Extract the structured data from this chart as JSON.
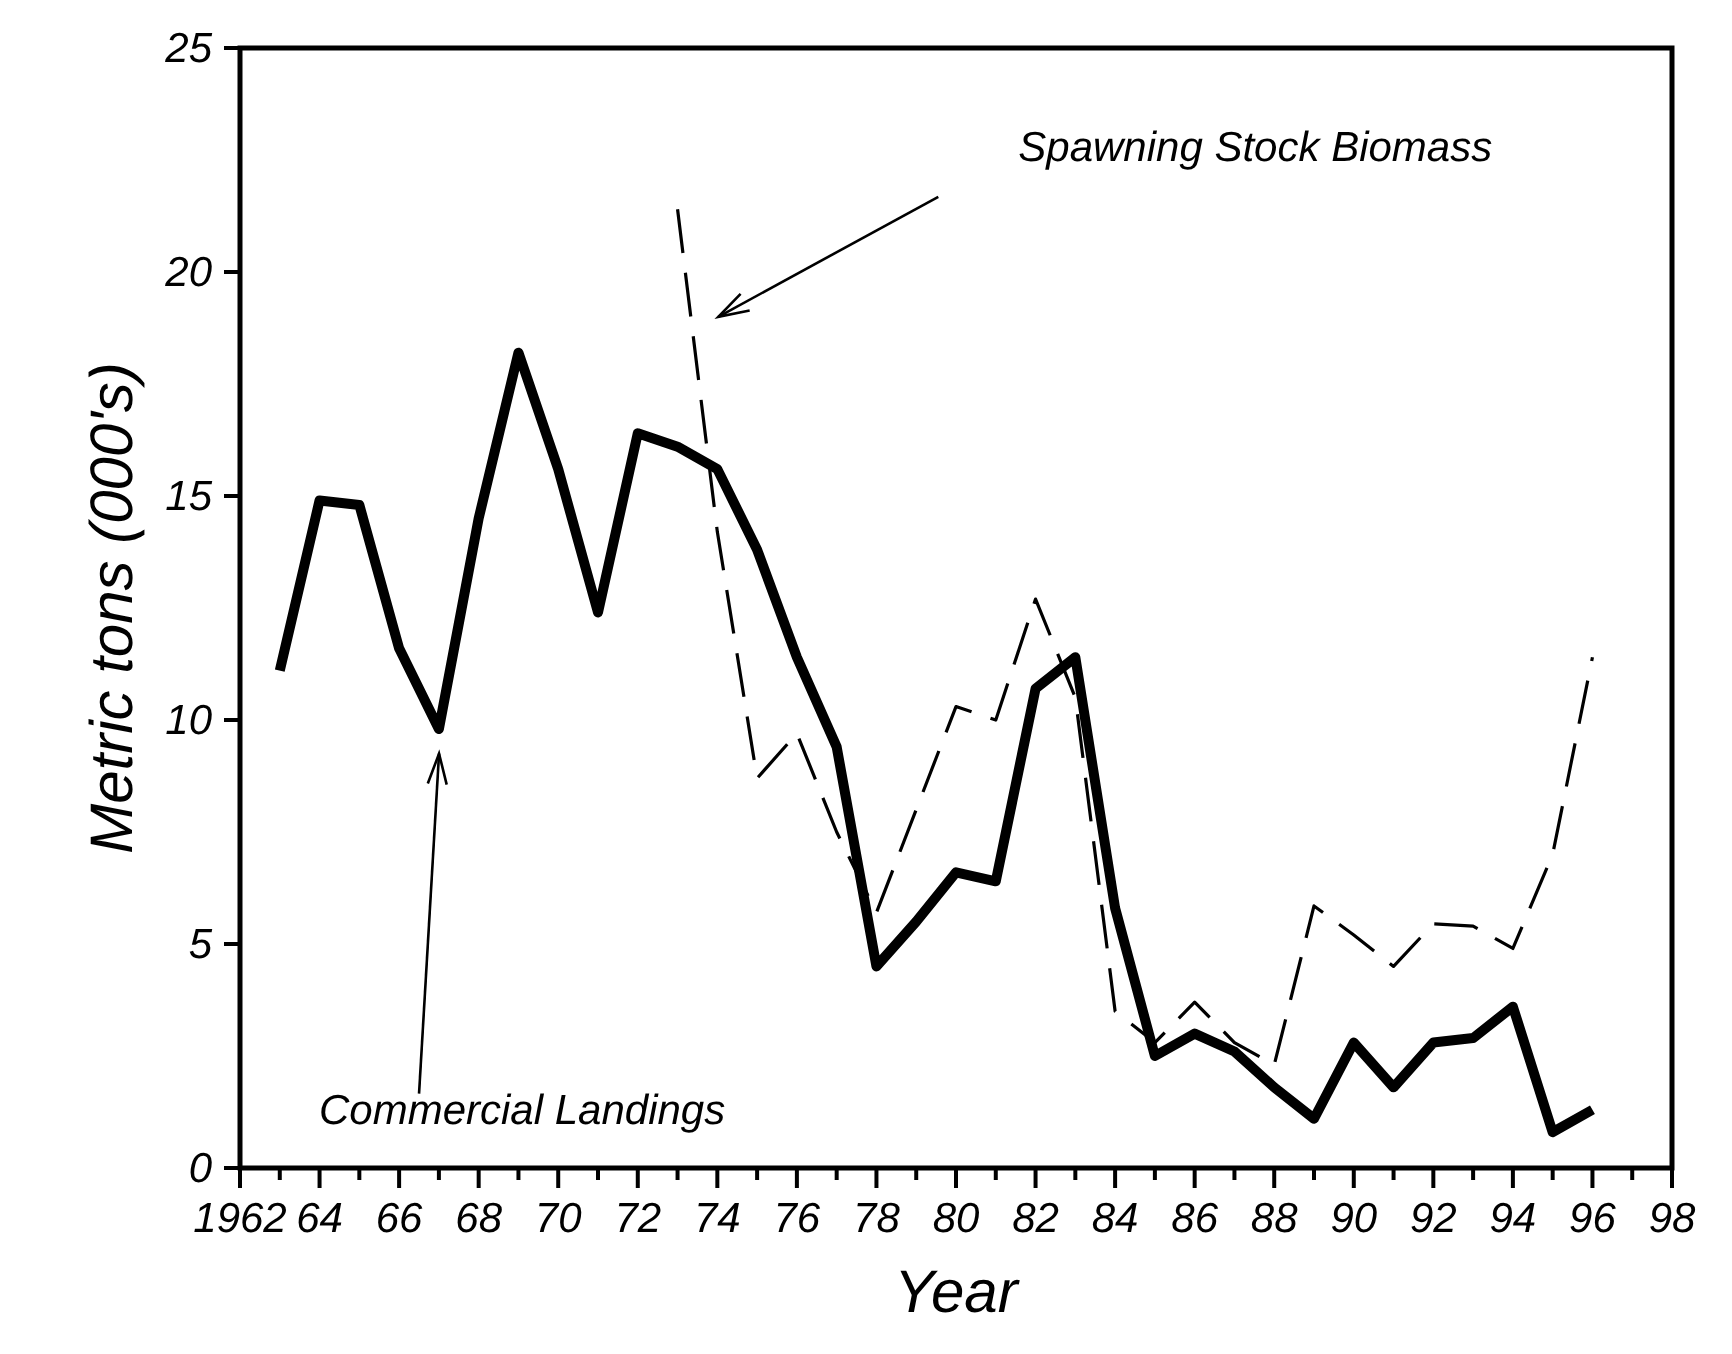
{
  "chart_data": {
    "type": "line",
    "xlabel": "Year",
    "ylabel": "Metric tons (000's)",
    "x": [
      1963,
      1964,
      1965,
      1966,
      1967,
      1968,
      1969,
      1970,
      1971,
      1972,
      1973,
      1974,
      1975,
      1976,
      1977,
      1978,
      1979,
      1980,
      1981,
      1982,
      1983,
      1984,
      1985,
      1986,
      1987,
      1988,
      1989,
      1990,
      1991,
      1992,
      1993,
      1994,
      1995,
      1996
    ],
    "series": [
      {
        "color": "#000000",
        "line_style": "solid",
        "values": [
          11.1,
          14.9,
          14.8,
          11.6,
          9.8,
          14.5,
          18.2,
          15.6,
          12.4,
          16.4,
          16.1,
          15.6,
          13.8,
          11.4,
          9.4,
          4.5,
          5.5,
          6.6,
          6.4,
          10.7,
          11.4,
          5.8,
          2.5,
          3.0,
          2.6,
          1.8,
          1.1,
          2.8,
          1.8,
          2.8,
          2.9,
          3.6,
          0.8,
          1.3
        ]
      },
      {
        "color": "#000000",
        "line_style": "dashed",
        "values": [
          null,
          null,
          null,
          null,
          null,
          null,
          null,
          null,
          null,
          null,
          21.4,
          14.2,
          8.7,
          9.7,
          7.5,
          5.7,
          8.0,
          10.3,
          10.0,
          12.7,
          10.5,
          3.5,
          2.8,
          3.7,
          2.8,
          2.3,
          5.85,
          5.2,
          4.5,
          5.45,
          5.4,
          4.9,
          7.0,
          11.4
        ]
      }
    ],
    "xlim": [
      1962,
      1998
    ],
    "xticks": [
      1962,
      {
        "value": 1964,
        "label": "64"
      },
      {
        "value": 1966,
        "label": "66"
      },
      {
        "value": 1968,
        "label": "68"
      },
      {
        "value": 1970,
        "label": "70"
      },
      {
        "value": 1972,
        "label": "72"
      },
      {
        "value": 1974,
        "label": "74"
      },
      {
        "value": 1976,
        "label": "76"
      },
      {
        "value": 1978,
        "label": "78"
      },
      {
        "value": 1980,
        "label": "80"
      },
      {
        "value": 1982,
        "label": "82"
      },
      {
        "value": 1984,
        "label": "84"
      },
      {
        "value": 1986,
        "label": "86"
      },
      {
        "value": 1988,
        "label": "88"
      },
      {
        "value": 1990,
        "label": "90"
      },
      {
        "value": 1992,
        "label": "92"
      },
      {
        "value": 1994,
        "label": "94"
      },
      {
        "value": 1996,
        "label": "96"
      },
      {
        "value": 1998,
        "label": "98"
      }
    ],
    "ylim": [
      0,
      25
    ],
    "yticks": [
      0,
      5,
      10,
      15,
      20,
      25
    ],
    "grid": false,
    "annotations": [
      "Spawning Stock Biomass",
      "Commercial Landings"
    ]
  }
}
